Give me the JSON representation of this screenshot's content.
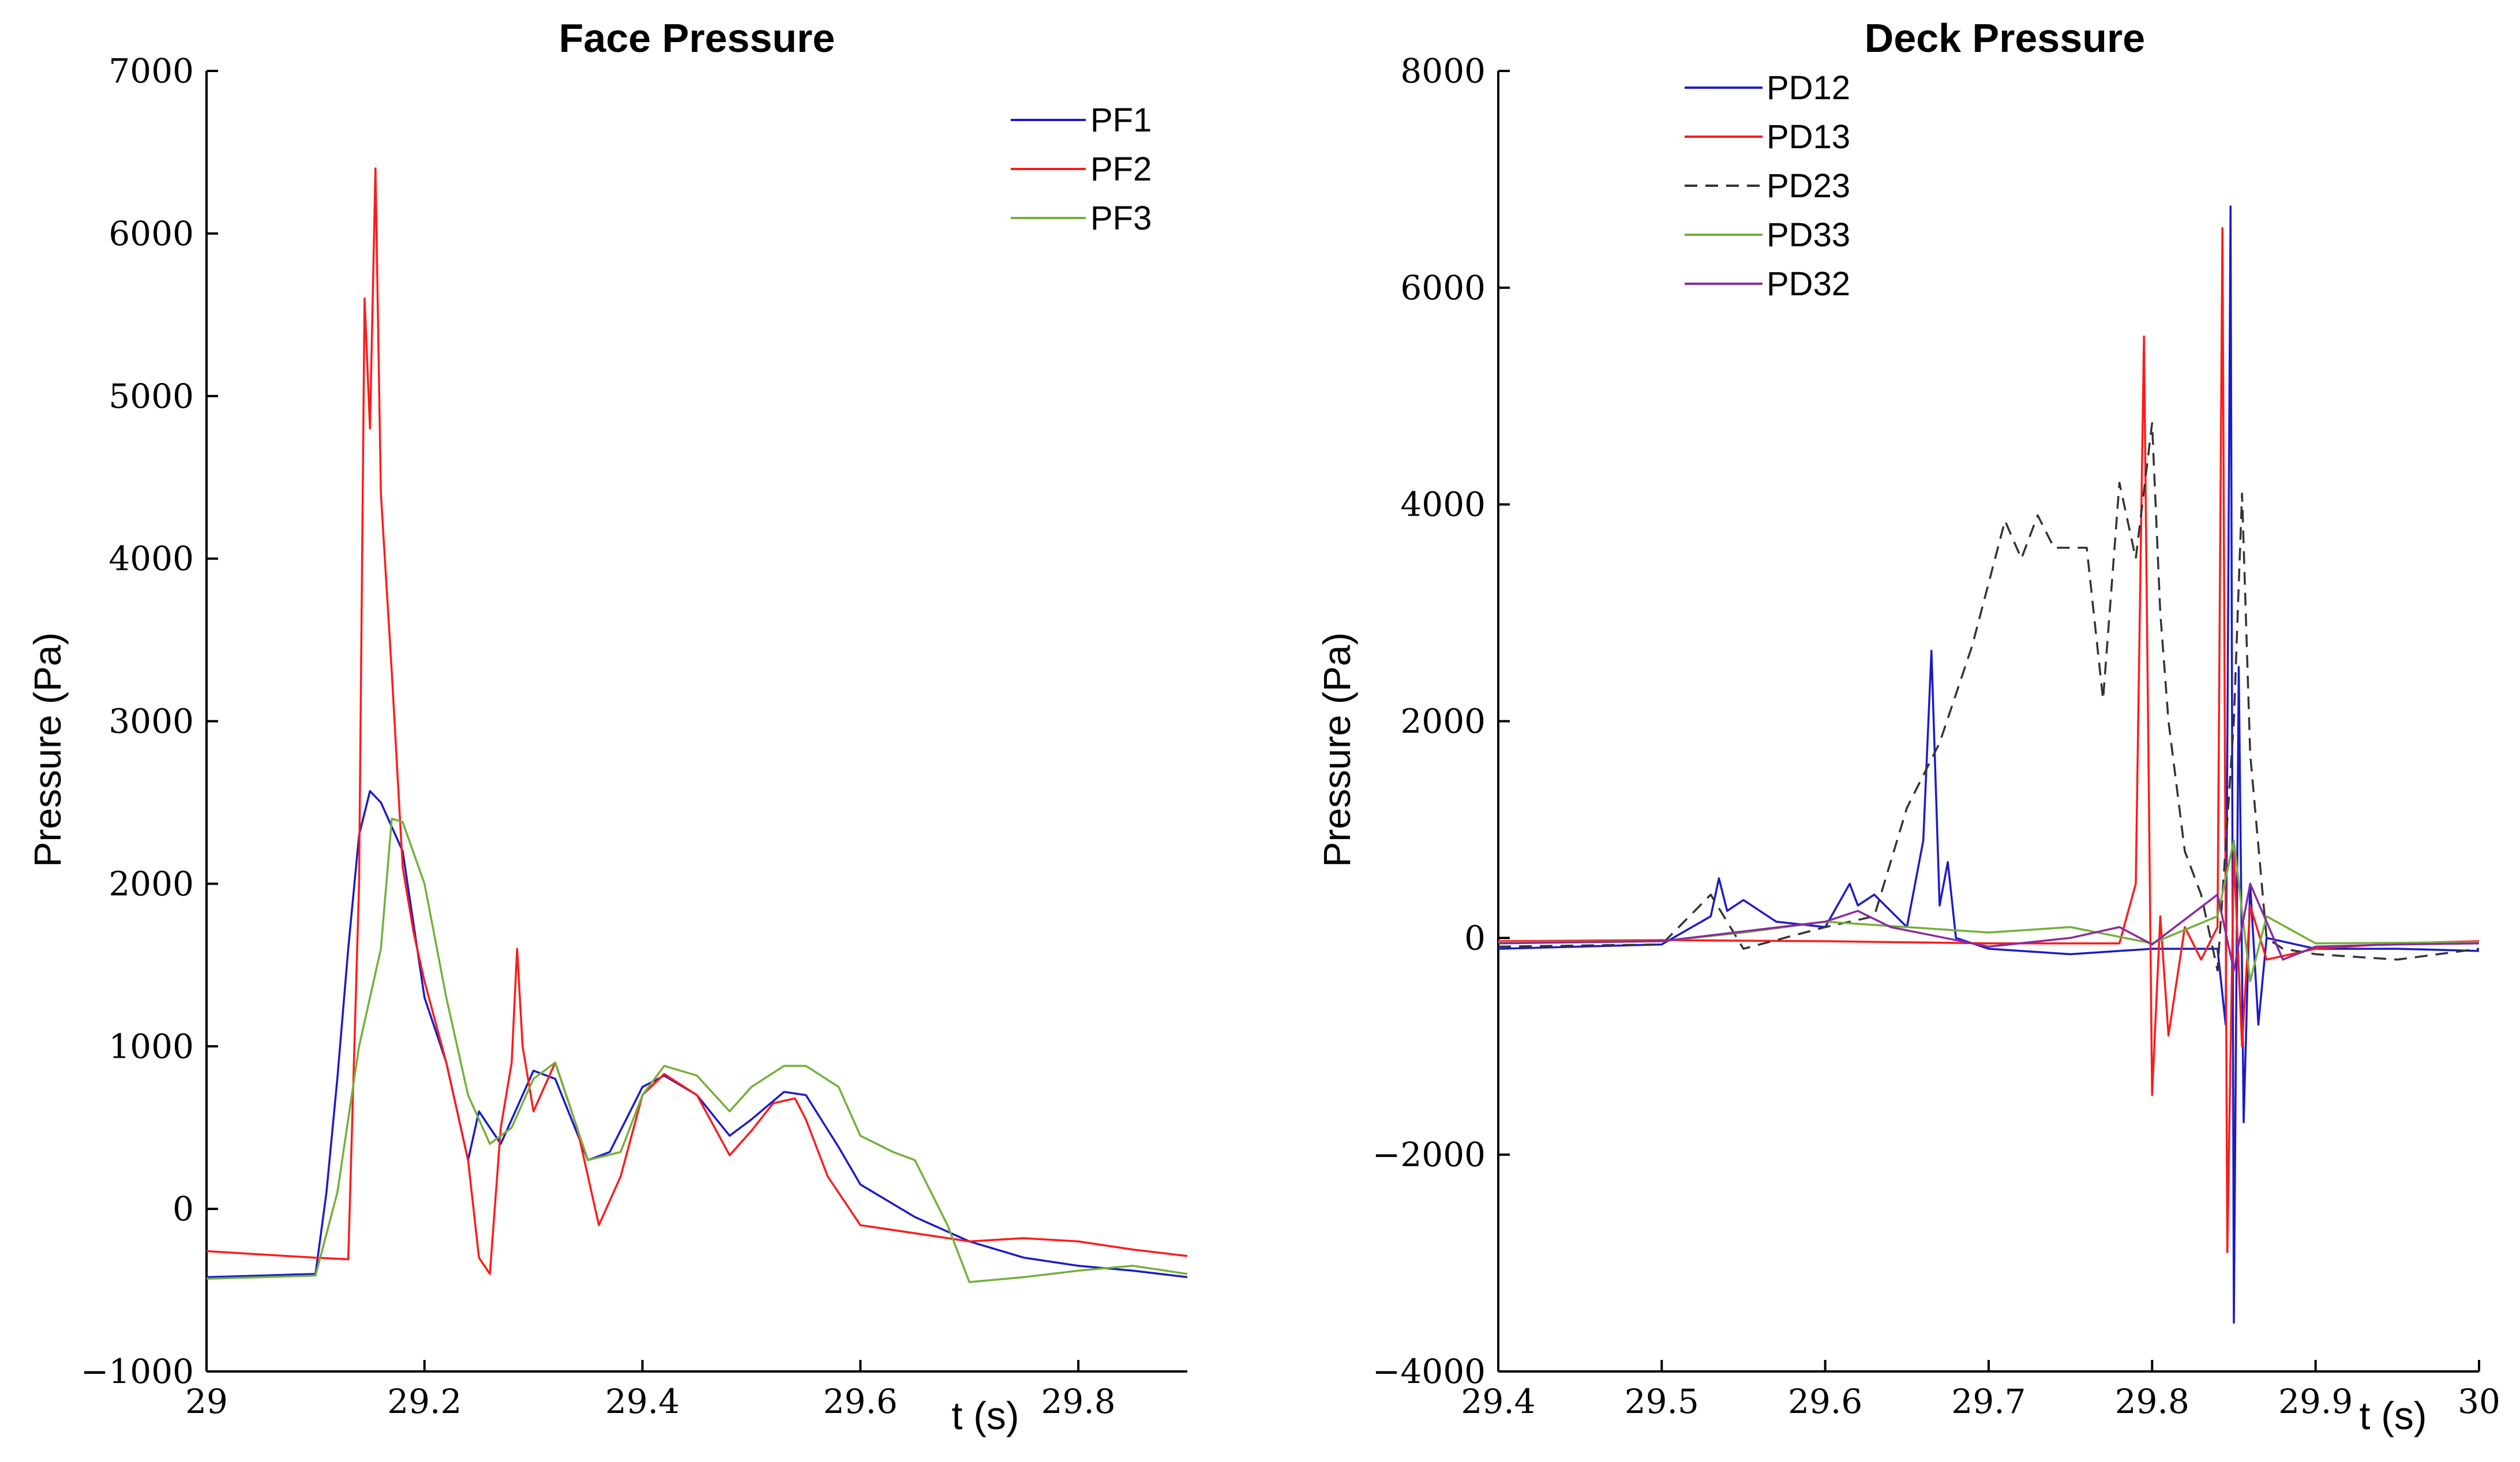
{
  "chart_data": [
    {
      "type": "line",
      "title": "Face Pressure",
      "xlabel": "t (s)",
      "ylabel": "Pressure (Pa)",
      "xlim": [
        29,
        29.9
      ],
      "ylim": [
        -1000,
        7000
      ],
      "xticks": [
        29,
        29.2,
        29.4,
        29.6,
        29.8
      ],
      "xtick_labels": [
        "29",
        "29.2",
        "29.4",
        "29.6",
        "29.8"
      ],
      "yticks": [
        -1000,
        0,
        1000,
        2000,
        3000,
        4000,
        5000,
        6000,
        7000
      ],
      "ytick_labels": [
        "−1000",
        "0",
        "1000",
        "2000",
        "3000",
        "4000",
        "5000",
        "6000",
        "7000"
      ],
      "legend_position": "top-right",
      "series": [
        {
          "name": "PF1",
          "color": "#1a1acc",
          "dash": "solid",
          "x": [
            29.0,
            29.05,
            29.1,
            29.11,
            29.12,
            29.13,
            29.14,
            29.15,
            29.16,
            29.18,
            29.2,
            29.22,
            29.24,
            29.25,
            29.27,
            29.3,
            29.32,
            29.35,
            29.37,
            29.4,
            29.42,
            29.45,
            29.48,
            29.5,
            29.53,
            29.55,
            29.58,
            29.6,
            29.65,
            29.7,
            29.75,
            29.8,
            29.85,
            29.9
          ],
          "y": [
            -420,
            -410,
            -400,
            100,
            800,
            1600,
            2300,
            2570,
            2500,
            2200,
            1300,
            900,
            300,
            600,
            400,
            850,
            800,
            300,
            350,
            750,
            820,
            700,
            450,
            550,
            720,
            700,
            380,
            150,
            -50,
            -200,
            -300,
            -350,
            -380,
            -420
          ]
        },
        {
          "name": "PF2",
          "color": "#ff1a1a",
          "dash": "solid",
          "x": [
            29.0,
            29.05,
            29.1,
            29.13,
            29.14,
            29.145,
            29.15,
            29.155,
            29.16,
            29.17,
            29.18,
            29.19,
            29.2,
            29.22,
            29.24,
            29.25,
            29.26,
            29.27,
            29.28,
            29.285,
            29.29,
            29.3,
            29.32,
            29.34,
            29.36,
            29.38,
            29.4,
            29.42,
            29.45,
            29.48,
            29.5,
            29.52,
            29.54,
            29.55,
            29.57,
            29.6,
            29.65,
            29.7,
            29.75,
            29.8,
            29.85,
            29.9
          ],
          "y": [
            -260,
            -280,
            -300,
            -310,
            2000,
            5600,
            4800,
            6400,
            4400,
            3300,
            2100,
            1700,
            1400,
            900,
            300,
            -300,
            -400,
            500,
            900,
            1600,
            1000,
            600,
            900,
            500,
            -100,
            200,
            700,
            830,
            700,
            330,
            480,
            650,
            680,
            550,
            200,
            -100,
            -150,
            -200,
            -180,
            -200,
            -250,
            -290
          ]
        },
        {
          "name": "PF3",
          "color": "#72b03a",
          "dash": "solid",
          "x": [
            29.0,
            29.05,
            29.1,
            29.12,
            29.14,
            29.16,
            29.17,
            29.18,
            29.2,
            29.22,
            29.24,
            29.26,
            29.28,
            29.3,
            29.32,
            29.35,
            29.38,
            29.4,
            29.42,
            29.45,
            29.48,
            29.5,
            29.53,
            29.55,
            29.58,
            29.6,
            29.63,
            29.65,
            29.68,
            29.7,
            29.75,
            29.8,
            29.85,
            29.9
          ],
          "y": [
            -430,
            -420,
            -410,
            100,
            1000,
            1600,
            2400,
            2380,
            2000,
            1300,
            700,
            400,
            500,
            800,
            900,
            300,
            350,
            700,
            880,
            820,
            600,
            750,
            880,
            880,
            750,
            450,
            350,
            300,
            -100,
            -450,
            -420,
            -380,
            -350,
            -400
          ]
        }
      ]
    },
    {
      "type": "line",
      "title": "Deck Pressure",
      "xlabel": "t (s)",
      "ylabel": "Pressure (Pa)",
      "xlim": [
        29.4,
        30
      ],
      "ylim": [
        -4000,
        8000
      ],
      "xticks": [
        29.4,
        29.5,
        29.6,
        29.7,
        29.8,
        29.9,
        30
      ],
      "xtick_labels": [
        "29.4",
        "29.5",
        "29.6",
        "29.7",
        "29.8",
        "29.9",
        "30"
      ],
      "yticks": [
        -4000,
        -2000,
        0,
        2000,
        4000,
        6000,
        8000
      ],
      "ytick_labels": [
        "−4000",
        "−2000",
        "0",
        "2000",
        "4000",
        "6000",
        "8000"
      ],
      "legend_position": "top-left",
      "series": [
        {
          "name": "PD12",
          "color": "#1a1acc",
          "dash": "solid",
          "x": [
            29.4,
            29.45,
            29.5,
            29.53,
            29.535,
            29.54,
            29.55,
            29.57,
            29.6,
            29.615,
            29.62,
            29.63,
            29.65,
            29.66,
            29.665,
            29.67,
            29.675,
            29.68,
            29.7,
            29.75,
            29.8,
            29.84,
            29.845,
            29.848,
            29.85,
            29.853,
            29.856,
            29.86,
            29.865,
            29.87,
            29.9,
            29.95,
            30.0
          ],
          "y": [
            -100,
            -80,
            -60,
            200,
            550,
            250,
            350,
            150,
            100,
            500,
            300,
            400,
            100,
            900,
            2650,
            300,
            700,
            0,
            -100,
            -150,
            -100,
            -100,
            -800,
            6750,
            -3550,
            2500,
            -1700,
            500,
            -800,
            0,
            -100,
            -100,
            -120
          ]
        },
        {
          "name": "PD13",
          "color": "#ff1a1a",
          "dash": "solid",
          "x": [
            29.4,
            29.5,
            29.6,
            29.7,
            29.78,
            29.79,
            29.795,
            29.8,
            29.805,
            29.81,
            29.82,
            29.83,
            29.84,
            29.843,
            29.846,
            29.85,
            29.855,
            29.86,
            29.87,
            29.9,
            29.95,
            30.0
          ],
          "y": [
            -30,
            -20,
            -30,
            -50,
            -50,
            500,
            5550,
            -1450,
            200,
            -900,
            100,
            -200,
            100,
            6550,
            -2900,
            800,
            -1000,
            300,
            -200,
            -100,
            -50,
            -30
          ]
        },
        {
          "name": "PD23",
          "color": "#333333",
          "dash": "dashed",
          "x": [
            29.4,
            29.5,
            29.53,
            29.55,
            29.6,
            29.63,
            29.65,
            29.67,
            29.69,
            29.71,
            29.72,
            29.73,
            29.74,
            29.76,
            29.77,
            29.78,
            29.79,
            29.8,
            29.805,
            29.81,
            29.82,
            29.83,
            29.84,
            29.85,
            29.855,
            29.86,
            29.87,
            29.88,
            29.9,
            29.95,
            30.0
          ],
          "y": [
            -80,
            -60,
            400,
            -100,
            100,
            200,
            1200,
            1800,
            2700,
            3850,
            3500,
            3900,
            3600,
            3600,
            2200,
            4200,
            3500,
            4750,
            3000,
            2000,
            800,
            400,
            -300,
            2000,
            4100,
            1700,
            0,
            -100,
            -150,
            -200,
            -100
          ]
        },
        {
          "name": "PD33",
          "color": "#72b03a",
          "dash": "solid",
          "x": [
            29.4,
            29.5,
            29.55,
            29.6,
            29.7,
            29.75,
            29.8,
            29.84,
            29.85,
            29.86,
            29.87,
            29.9,
            30.0
          ],
          "y": [
            -40,
            -30,
            50,
            150,
            50,
            100,
            -50,
            200,
            900,
            -400,
            200,
            -50,
            -40
          ]
        },
        {
          "name": "PD32",
          "color": "#8a2a9e",
          "dash": "solid",
          "x": [
            29.4,
            29.5,
            29.6,
            29.62,
            29.64,
            29.7,
            29.75,
            29.78,
            29.8,
            29.84,
            29.85,
            29.86,
            29.88,
            29.9,
            29.95,
            30.0
          ],
          "y": [
            -50,
            -30,
            150,
            250,
            100,
            -80,
            0,
            100,
            -60,
            400,
            -300,
            500,
            -200,
            -80,
            -60,
            -50
          ]
        }
      ]
    }
  ]
}
